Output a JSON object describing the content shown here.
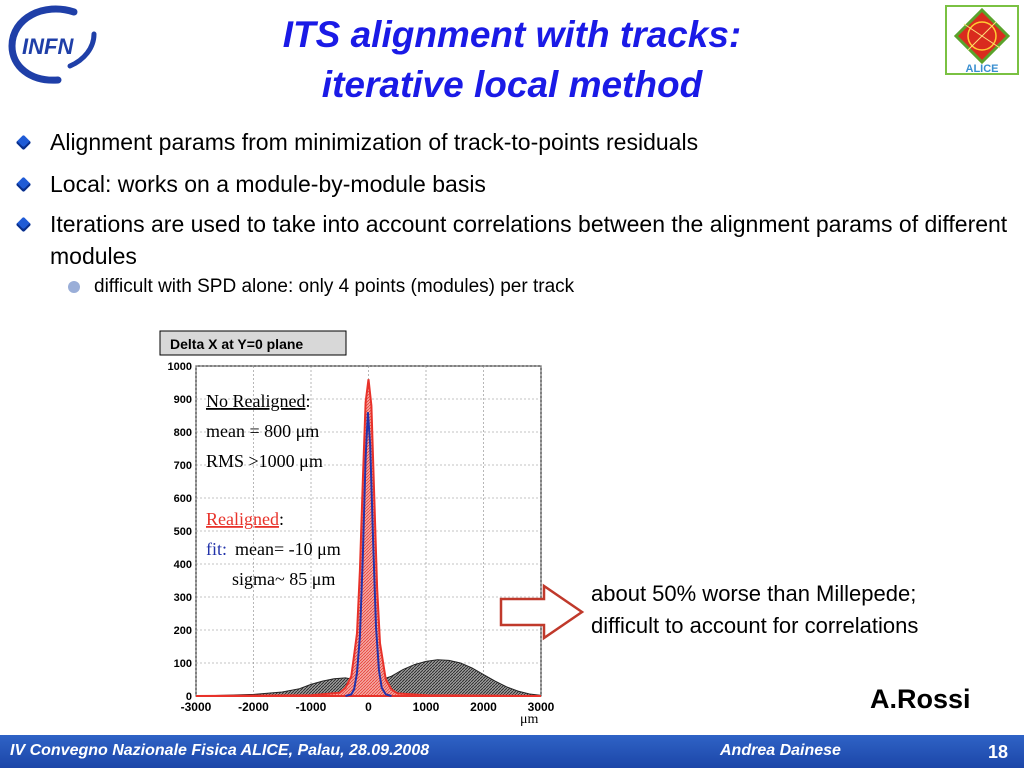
{
  "slide": {
    "title_line1": "ITS alignment with tracks:",
    "title_line2": "iterative local method",
    "bullets": [
      "Alignment params from minimization of  track-to-points residuals",
      "Local: works on a module-by-module basis",
      "Iterations are used to take into account correlations between the alignment params of different modules"
    ],
    "sub_bullet": "difficult with SPD alone: only 4 points (modules) per track",
    "note_line1": "about 50% worse than Millepede;",
    "note_line2": "difficult to account for correlations",
    "author": "A.Rossi"
  },
  "logos": {
    "left": "INFN",
    "right": "ALICE"
  },
  "footer": {
    "text": "IV Convegno Nazionale Fisica ALICE, Palau, 28.09.2008",
    "author": "Andrea Dainese",
    "page": "18"
  },
  "colors": {
    "title": "#1a1ae6",
    "footer": "#2553b8",
    "bullet": "#1f5bd6",
    "red": "#e8322a",
    "blue": "#2233aa"
  },
  "chart_data": {
    "type": "histogram",
    "title": "Delta X at Y=0 plane",
    "xlabel": "μm",
    "ylabel": "",
    "xlim": [
      -3000,
      3000
    ],
    "ylim": [
      0,
      1000
    ],
    "xticks": [
      "-3000",
      "-2000",
      "-1000",
      "0",
      "1000",
      "2000",
      "3000"
    ],
    "yticks": [
      "0",
      "100",
      "200",
      "300",
      "400",
      "500",
      "600",
      "700",
      "800",
      "900",
      "1000"
    ],
    "grid": true,
    "annotations": {
      "no_realigned_header": "No Realigned",
      "no_realigned_colon": ":",
      "no_realigned_mean": "mean =  800 μm",
      "no_realigned_rms": "RMS >1000 μm",
      "realigned_header": "Realigned",
      "realigned_colon": ":",
      "fit_label": "fit:",
      "realigned_mean": "mean= -10 μm",
      "realigned_sigma": "sigma~ 85 μm"
    },
    "series": [
      {
        "name": "No Realigned",
        "color": "#222222",
        "x": [
          -3000,
          -2500,
          -2000,
          -1500,
          -1200,
          -1000,
          -800,
          -600,
          -400,
          -200,
          0,
          200,
          400,
          600,
          800,
          1000,
          1200,
          1400,
          1600,
          1800,
          2000,
          2200,
          2400,
          2600,
          2800,
          3000
        ],
        "values": [
          0,
          2,
          5,
          12,
          22,
          35,
          45,
          52,
          55,
          48,
          40,
          48,
          60,
          80,
          95,
          105,
          110,
          108,
          100,
          85,
          65,
          45,
          28,
          15,
          6,
          2
        ]
      },
      {
        "name": "Realigned",
        "color": "#e8322a",
        "x": [
          -3000,
          -1000,
          -500,
          -400,
          -300,
          -200,
          -150,
          -100,
          -50,
          0,
          50,
          100,
          150,
          200,
          300,
          400,
          500,
          1000,
          3000
        ],
        "values": [
          0,
          2,
          10,
          25,
          60,
          190,
          380,
          650,
          890,
          960,
          880,
          600,
          330,
          160,
          50,
          20,
          8,
          2,
          0
        ]
      },
      {
        "name": "fit",
        "color": "#2233aa",
        "x": [
          -400,
          -300,
          -250,
          -200,
          -150,
          -100,
          -50,
          -10,
          30,
          80,
          130,
          180,
          230,
          300,
          400
        ],
        "values": [
          0,
          5,
          20,
          70,
          180,
          420,
          720,
          860,
          760,
          470,
          210,
          80,
          25,
          5,
          0
        ]
      }
    ]
  }
}
